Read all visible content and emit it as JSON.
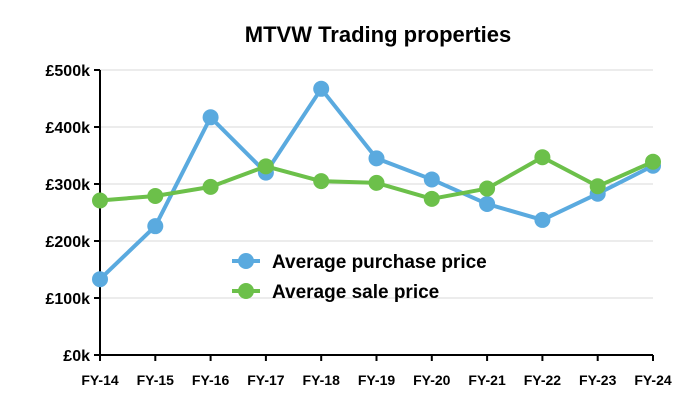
{
  "chart_data": {
    "type": "line",
    "title": "MTVW Trading properties",
    "xlabel": "",
    "ylabel": "",
    "categories": [
      "FY-14",
      "FY-15",
      "FY-16",
      "FY-17",
      "FY-18",
      "FY-19",
      "FY-20",
      "FY-21",
      "FY-22",
      "FY-23",
      "FY-24"
    ],
    "ylim": [
      0,
      500000
    ],
    "yticks": [
      0,
      100000,
      200000,
      300000,
      400000,
      500000
    ],
    "ytick_labels": [
      "£0k",
      "£100k",
      "£200k",
      "£300k",
      "£400k",
      "£500k"
    ],
    "grid": true,
    "legend_position": "center",
    "series": [
      {
        "name": "Average purchase price",
        "color": "#5aaadf",
        "values": [
          133000,
          226000,
          417000,
          320000,
          467000,
          345000,
          308000,
          265000,
          237000,
          283000,
          332000
        ]
      },
      {
        "name": "Average sale price",
        "color": "#6cc04a",
        "values": [
          271000,
          279000,
          295000,
          331000,
          305000,
          302000,
          274000,
          292000,
          347000,
          296000,
          339000
        ]
      }
    ]
  }
}
